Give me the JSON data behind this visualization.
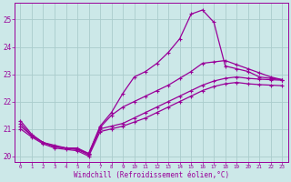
{
  "xlabel": "Windchill (Refroidissement éolien,°C)",
  "background_color": "#cce8e8",
  "line_color": "#990099",
  "grid_color": "#bbdddd",
  "xlim": [
    -0.5,
    23.5
  ],
  "ylim": [
    19.8,
    25.6
  ],
  "ytick_values": [
    20,
    21,
    22,
    23,
    24,
    25
  ],
  "xtick_labels": [
    "0",
    "1",
    "2",
    "3",
    "4",
    "5",
    "6",
    "7",
    "8",
    "9",
    "10",
    "11",
    "12",
    "13",
    "14",
    "15",
    "16",
    "17",
    "18",
    "19",
    "20",
    "21",
    "22",
    "23"
  ],
  "series": [
    {
      "x": [
        0,
        1,
        2,
        3,
        4,
        5,
        6,
        7,
        8,
        9,
        10,
        11,
        12,
        13,
        14,
        15,
        16,
        17,
        18,
        19,
        20,
        21,
        22,
        23
      ],
      "y": [
        21.3,
        20.8,
        20.5,
        20.4,
        20.3,
        20.3,
        20.1,
        21.1,
        21.6,
        22.3,
        22.9,
        23.1,
        23.4,
        23.8,
        24.3,
        25.2,
        25.35,
        24.9,
        23.3,
        23.2,
        23.1,
        22.9,
        22.85,
        22.8
      ]
    },
    {
      "x": [
        0,
        1,
        2,
        3,
        4,
        5,
        6,
        7,
        8,
        9,
        10,
        11,
        12,
        13,
        14,
        15,
        16,
        17,
        18,
        19,
        20,
        21,
        22,
        23
      ],
      "y": [
        21.2,
        20.75,
        20.5,
        20.35,
        20.3,
        20.25,
        20.1,
        21.05,
        21.5,
        21.8,
        22.0,
        22.2,
        22.4,
        22.6,
        22.85,
        23.1,
        23.4,
        23.45,
        23.5,
        23.35,
        23.2,
        23.05,
        22.9,
        22.8
      ]
    },
    {
      "x": [
        0,
        1,
        2,
        3,
        4,
        5,
        6,
        7,
        8,
        9,
        10,
        11,
        12,
        13,
        14,
        15,
        16,
        17,
        18,
        19,
        20,
        21,
        22,
        23
      ],
      "y": [
        21.1,
        20.75,
        20.5,
        20.35,
        20.3,
        20.25,
        20.05,
        21.0,
        21.1,
        21.2,
        21.4,
        21.6,
        21.8,
        22.0,
        22.2,
        22.4,
        22.6,
        22.75,
        22.85,
        22.9,
        22.85,
        22.82,
        22.8,
        22.78
      ]
    },
    {
      "x": [
        0,
        1,
        2,
        3,
        4,
        5,
        6,
        7,
        8,
        9,
        10,
        11,
        12,
        13,
        14,
        15,
        16,
        17,
        18,
        19,
        20,
        21,
        22,
        23
      ],
      "y": [
        21.0,
        20.7,
        20.45,
        20.3,
        20.25,
        20.2,
        20.0,
        20.9,
        21.0,
        21.1,
        21.25,
        21.4,
        21.6,
        21.8,
        22.0,
        22.2,
        22.4,
        22.55,
        22.65,
        22.7,
        22.65,
        22.62,
        22.6,
        22.58
      ]
    }
  ]
}
